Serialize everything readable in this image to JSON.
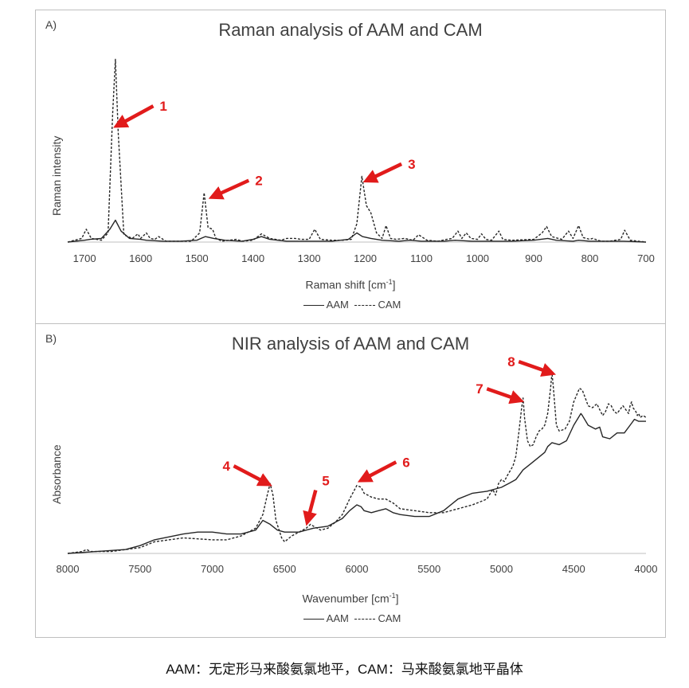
{
  "caption": "AAM：无定形马来酸氨氯地平，CAM：马来酸氨氯地平晶体",
  "colors": {
    "line": "#262626",
    "arrow": "#e11b1b",
    "axis": "#bfbfbf",
    "text": "#404040"
  },
  "chart_data": [
    {
      "type": "line",
      "panel_label": "A)",
      "title": "Raman analysis of AAM and CAM",
      "xlabel": "Raman shift [cm-1]",
      "xlabel_main": "Raman shift [cm",
      "xlabel_sup": "-1",
      "xlabel_end": "]",
      "ylabel": "Raman intensity",
      "xlim": [
        1730,
        700
      ],
      "x_reversed": true,
      "ylim": [
        0,
        1.05
      ],
      "xticks": [
        1700,
        1600,
        1500,
        1400,
        1300,
        1200,
        1100,
        1000,
        900,
        800,
        700
      ],
      "yticks_shown": false,
      "legend": {
        "position": "bottom",
        "entries": [
          {
            "name": "AAM",
            "style": "solid"
          },
          {
            "name": "CAM",
            "style": "dashed"
          }
        ]
      },
      "series": [
        {
          "name": "AAM",
          "style": "solid",
          "x": [
            1730,
            1700,
            1690,
            1670,
            1655,
            1645,
            1635,
            1620,
            1600,
            1590,
            1560,
            1530,
            1500,
            1485,
            1470,
            1450,
            1420,
            1400,
            1385,
            1370,
            1340,
            1300,
            1260,
            1230,
            1215,
            1205,
            1190,
            1170,
            1140,
            1120,
            1100,
            1060,
            1040,
            1010,
            980,
            940,
            900,
            875,
            860,
            830,
            820,
            800,
            770,
            740,
            700
          ],
          "y": [
            0.0,
            0.01,
            0.015,
            0.02,
            0.07,
            0.12,
            0.06,
            0.02,
            0.015,
            0.01,
            0.005,
            0.005,
            0.01,
            0.03,
            0.02,
            0.01,
            0.005,
            0.015,
            0.03,
            0.015,
            0.005,
            0.005,
            0.005,
            0.015,
            0.05,
            0.03,
            0.02,
            0.01,
            0.005,
            0.01,
            0.005,
            0.005,
            0.01,
            0.005,
            0.005,
            0.005,
            0.01,
            0.02,
            0.01,
            0.005,
            0.01,
            0.005,
            0.005,
            0.005,
            0.0
          ]
        },
        {
          "name": "CAM",
          "style": "dashed",
          "x": [
            1730,
            1705,
            1697,
            1688,
            1670,
            1658,
            1650,
            1645,
            1640,
            1630,
            1615,
            1605,
            1600,
            1590,
            1583,
            1575,
            1568,
            1555,
            1510,
            1495,
            1487,
            1480,
            1472,
            1466,
            1455,
            1430,
            1418,
            1400,
            1385,
            1370,
            1350,
            1340,
            1325,
            1315,
            1300,
            1290,
            1280,
            1260,
            1240,
            1225,
            1215,
            1206,
            1198,
            1190,
            1180,
            1170,
            1163,
            1155,
            1145,
            1130,
            1115,
            1105,
            1090,
            1070,
            1055,
            1045,
            1035,
            1028,
            1020,
            1012,
            1000,
            993,
            985,
            975,
            962,
            955,
            940,
            900,
            885,
            877,
            868,
            850,
            838,
            830,
            820,
            812,
            800,
            795,
            780,
            765,
            745,
            738,
            728,
            700
          ],
          "y": [
            0.0,
            0.02,
            0.07,
            0.02,
            0.01,
            0.05,
            0.7,
            1.0,
            0.6,
            0.04,
            0.02,
            0.045,
            0.02,
            0.05,
            0.02,
            0.015,
            0.03,
            0.005,
            0.005,
            0.05,
            0.27,
            0.08,
            0.07,
            0.02,
            0.005,
            0.015,
            0.005,
            0.01,
            0.045,
            0.02,
            0.01,
            0.02,
            0.02,
            0.015,
            0.015,
            0.07,
            0.015,
            0.01,
            0.01,
            0.015,
            0.1,
            0.36,
            0.2,
            0.16,
            0.05,
            0.02,
            0.09,
            0.02,
            0.015,
            0.02,
            0.01,
            0.04,
            0.01,
            0.005,
            0.015,
            0.02,
            0.06,
            0.02,
            0.05,
            0.02,
            0.015,
            0.045,
            0.015,
            0.01,
            0.06,
            0.015,
            0.01,
            0.015,
            0.05,
            0.085,
            0.03,
            0.015,
            0.06,
            0.02,
            0.09,
            0.025,
            0.015,
            0.02,
            0.005,
            0.005,
            0.015,
            0.065,
            0.01,
            0.0
          ]
        }
      ],
      "annotations": [
        {
          "label": "1",
          "x": 1640,
          "y": 0.64
        },
        {
          "label": "2",
          "x": 1470,
          "y": 0.25
        },
        {
          "label": "3",
          "x": 1195,
          "y": 0.34
        }
      ]
    },
    {
      "type": "line",
      "panel_label": "B)",
      "title": "NIR analysis of AAM and CAM",
      "xlabel": "Wavenumber [cm-1]",
      "xlabel_main": "Wavenumber [cm",
      "xlabel_sup": "-1",
      "xlabel_end": "]",
      "ylabel": "Absorbance",
      "xlim": [
        8000,
        4000
      ],
      "x_reversed": true,
      "ylim": [
        0,
        1.0
      ],
      "xticks": [
        8000,
        7500,
        7000,
        6500,
        6000,
        5500,
        5000,
        4500,
        4000
      ],
      "yticks_shown": false,
      "legend": {
        "position": "bottom",
        "entries": [
          {
            "name": "AAM",
            "style": "solid"
          },
          {
            "name": "CAM",
            "style": "dashed"
          }
        ]
      },
      "series": [
        {
          "name": "AAM",
          "style": "solid",
          "x": [
            8000,
            7800,
            7600,
            7500,
            7400,
            7200,
            7100,
            7000,
            6900,
            6800,
            6700,
            6650,
            6600,
            6550,
            6500,
            6450,
            6400,
            6350,
            6300,
            6200,
            6100,
            6050,
            6000,
            5970,
            5950,
            5900,
            5850,
            5800,
            5750,
            5700,
            5600,
            5500,
            5400,
            5300,
            5200,
            5100,
            5000,
            4950,
            4900,
            4850,
            4800,
            4750,
            4700,
            4680,
            4650,
            4600,
            4550,
            4500,
            4450,
            4440,
            4400,
            4350,
            4320,
            4300,
            4250,
            4200,
            4150,
            4100,
            4080,
            4050,
            4000
          ],
          "y": [
            0.0,
            0.01,
            0.02,
            0.04,
            0.07,
            0.1,
            0.11,
            0.11,
            0.1,
            0.1,
            0.12,
            0.17,
            0.15,
            0.12,
            0.11,
            0.11,
            0.11,
            0.12,
            0.13,
            0.14,
            0.18,
            0.22,
            0.25,
            0.24,
            0.22,
            0.21,
            0.22,
            0.23,
            0.21,
            0.2,
            0.19,
            0.19,
            0.22,
            0.28,
            0.31,
            0.32,
            0.34,
            0.36,
            0.38,
            0.43,
            0.46,
            0.49,
            0.52,
            0.55,
            0.57,
            0.56,
            0.58,
            0.66,
            0.72,
            0.71,
            0.66,
            0.64,
            0.65,
            0.6,
            0.59,
            0.62,
            0.62,
            0.67,
            0.69,
            0.68,
            0.68
          ]
        },
        {
          "name": "CAM",
          "style": "dashed",
          "x": [
            8000,
            7900,
            7870,
            7840,
            7700,
            7500,
            7400,
            7200,
            7000,
            6900,
            6800,
            6700,
            6650,
            6620,
            6600,
            6580,
            6560,
            6520,
            6500,
            6450,
            6400,
            6350,
            6320,
            6300,
            6250,
            6200,
            6150,
            6100,
            6050,
            6000,
            5970,
            5950,
            5900,
            5850,
            5800,
            5750,
            5700,
            5600,
            5500,
            5400,
            5300,
            5200,
            5100,
            5060,
            5040,
            5020,
            5000,
            4980,
            4960,
            4920,
            4900,
            4880,
            4860,
            4850,
            4840,
            4820,
            4800,
            4780,
            4760,
            4740,
            4720,
            4700,
            4680,
            4660,
            4650,
            4640,
            4620,
            4600,
            4560,
            4530,
            4500,
            4460,
            4440,
            4420,
            4400,
            4370,
            4340,
            4320,
            4300,
            4280,
            4260,
            4240,
            4220,
            4200,
            4180,
            4160,
            4140,
            4120,
            4110,
            4100,
            4090,
            4070,
            4060,
            4050,
            4040,
            4020,
            4000
          ],
          "y": [
            0.0,
            0.01,
            0.02,
            0.01,
            0.01,
            0.03,
            0.06,
            0.08,
            0.07,
            0.07,
            0.09,
            0.13,
            0.2,
            0.3,
            0.36,
            0.3,
            0.17,
            0.08,
            0.06,
            0.09,
            0.11,
            0.13,
            0.15,
            0.14,
            0.12,
            0.13,
            0.16,
            0.2,
            0.28,
            0.35,
            0.34,
            0.31,
            0.29,
            0.28,
            0.28,
            0.26,
            0.23,
            0.22,
            0.21,
            0.21,
            0.23,
            0.25,
            0.28,
            0.33,
            0.3,
            0.36,
            0.38,
            0.37,
            0.4,
            0.45,
            0.5,
            0.62,
            0.75,
            0.8,
            0.7,
            0.58,
            0.55,
            0.56,
            0.6,
            0.63,
            0.64,
            0.66,
            0.72,
            0.85,
            0.93,
            0.85,
            0.66,
            0.63,
            0.64,
            0.68,
            0.78,
            0.85,
            0.84,
            0.8,
            0.76,
            0.75,
            0.77,
            0.74,
            0.71,
            0.73,
            0.77,
            0.76,
            0.73,
            0.72,
            0.74,
            0.76,
            0.74,
            0.72,
            0.76,
            0.78,
            0.75,
            0.73,
            0.71,
            0.72,
            0.7,
            0.71,
            0.7
          ]
        }
      ],
      "annotations": [
        {
          "label": "4",
          "x": 6620,
          "y": 0.36
        },
        {
          "label": "5",
          "x": 6340,
          "y": 0.17
        },
        {
          "label": "6",
          "x": 5960,
          "y": 0.38
        },
        {
          "label": "7",
          "x": 4880,
          "y": 0.79
        },
        {
          "label": "8",
          "x": 4660,
          "y": 0.93
        }
      ]
    }
  ]
}
